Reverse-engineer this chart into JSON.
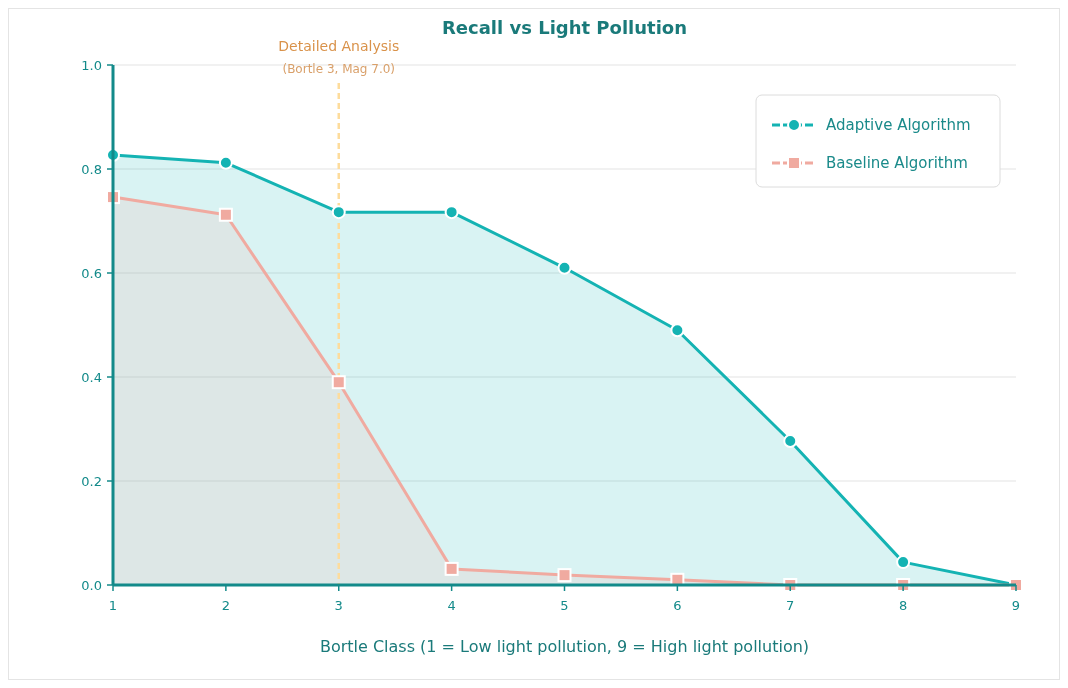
{
  "chart_data": {
    "type": "area",
    "title": "Recall vs Light Pollution",
    "xlabel": "Bortle Class (1 = Low light pollution, 9 = High light pollution)",
    "x": [
      1,
      2,
      3,
      4,
      5,
      6,
      7,
      8,
      9
    ],
    "series": [
      {
        "name": "Adaptive Algorithm",
        "color": "#14b3b3",
        "marker": "circle",
        "values": [
          0.827,
          0.812,
          0.717,
          0.717,
          0.61,
          0.49,
          0.277,
          0.044,
          0
        ]
      },
      {
        "name": "Baseline Algorithm",
        "color": "#f0aaa0",
        "marker": "square",
        "values": [
          0.746,
          0.712,
          0.39,
          0.031,
          0.019,
          0.01,
          0,
          0,
          0
        ]
      }
    ],
    "xlim": [
      1,
      9
    ],
    "xticks": [
      1,
      2,
      3,
      4,
      5,
      6,
      7,
      8,
      9
    ],
    "ylim": [
      0,
      1
    ],
    "yticks": [
      {
        "value": 0,
        "label": "0.0"
      },
      0.2,
      0.4,
      0.6,
      0.8,
      {
        "value": 1,
        "label": "1.0"
      }
    ],
    "grid": "y",
    "legend": "top right",
    "line_style": "solid",
    "ref_lines": [
      {
        "axis": "x",
        "value": 3,
        "label": "Detailed Analysis",
        "color": "#fddc9c",
        "line_style": "dashed"
      }
    ],
    "annotations": [
      "(Bortle 3, Mag 7.0)"
    ]
  }
}
